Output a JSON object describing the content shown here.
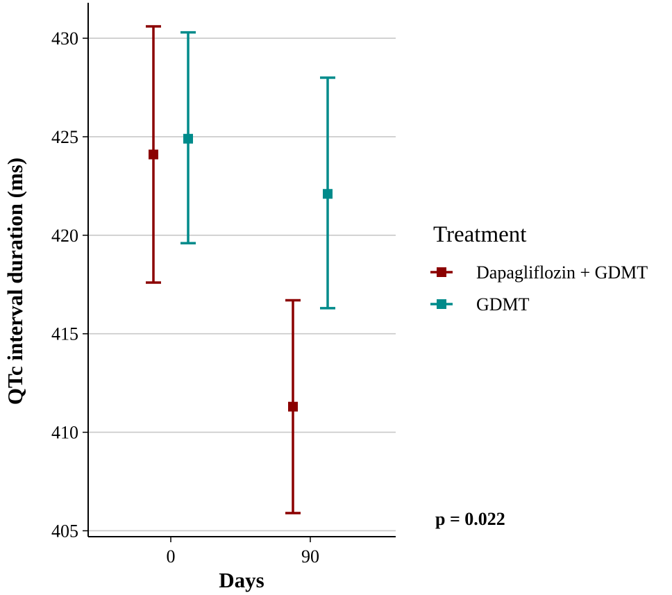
{
  "chart_data": {
    "type": "errorbar",
    "ylabel": "QTc interval duration (ms)",
    "xlabel": "Days",
    "x_categories": [
      "0",
      "90"
    ],
    "ylim": [
      404.7,
      431.8
    ],
    "y_ticks": [
      405,
      410,
      415,
      420,
      425,
      430
    ],
    "y_tick_labels": [
      "405",
      "410",
      "415",
      "420",
      "425",
      "430"
    ],
    "grid": "horizontal",
    "legend": {
      "title": "Treatment",
      "position": "right"
    },
    "series": [
      {
        "name": "Dapagliflozin + GDMT",
        "color": "#8b0000",
        "points": [
          {
            "x": "0",
            "mean": 424.1,
            "lower": 417.6,
            "upper": 430.6
          },
          {
            "x": "90",
            "mean": 411.3,
            "lower": 405.9,
            "upper": 416.7
          }
        ]
      },
      {
        "name": "GDMT",
        "color": "#008b8b",
        "points": [
          {
            "x": "0",
            "mean": 424.9,
            "lower": 419.6,
            "upper": 430.3
          },
          {
            "x": "90",
            "mean": 422.1,
            "lower": 416.3,
            "upper": 428.0
          }
        ]
      }
    ],
    "annotation": "p = 0.022"
  }
}
